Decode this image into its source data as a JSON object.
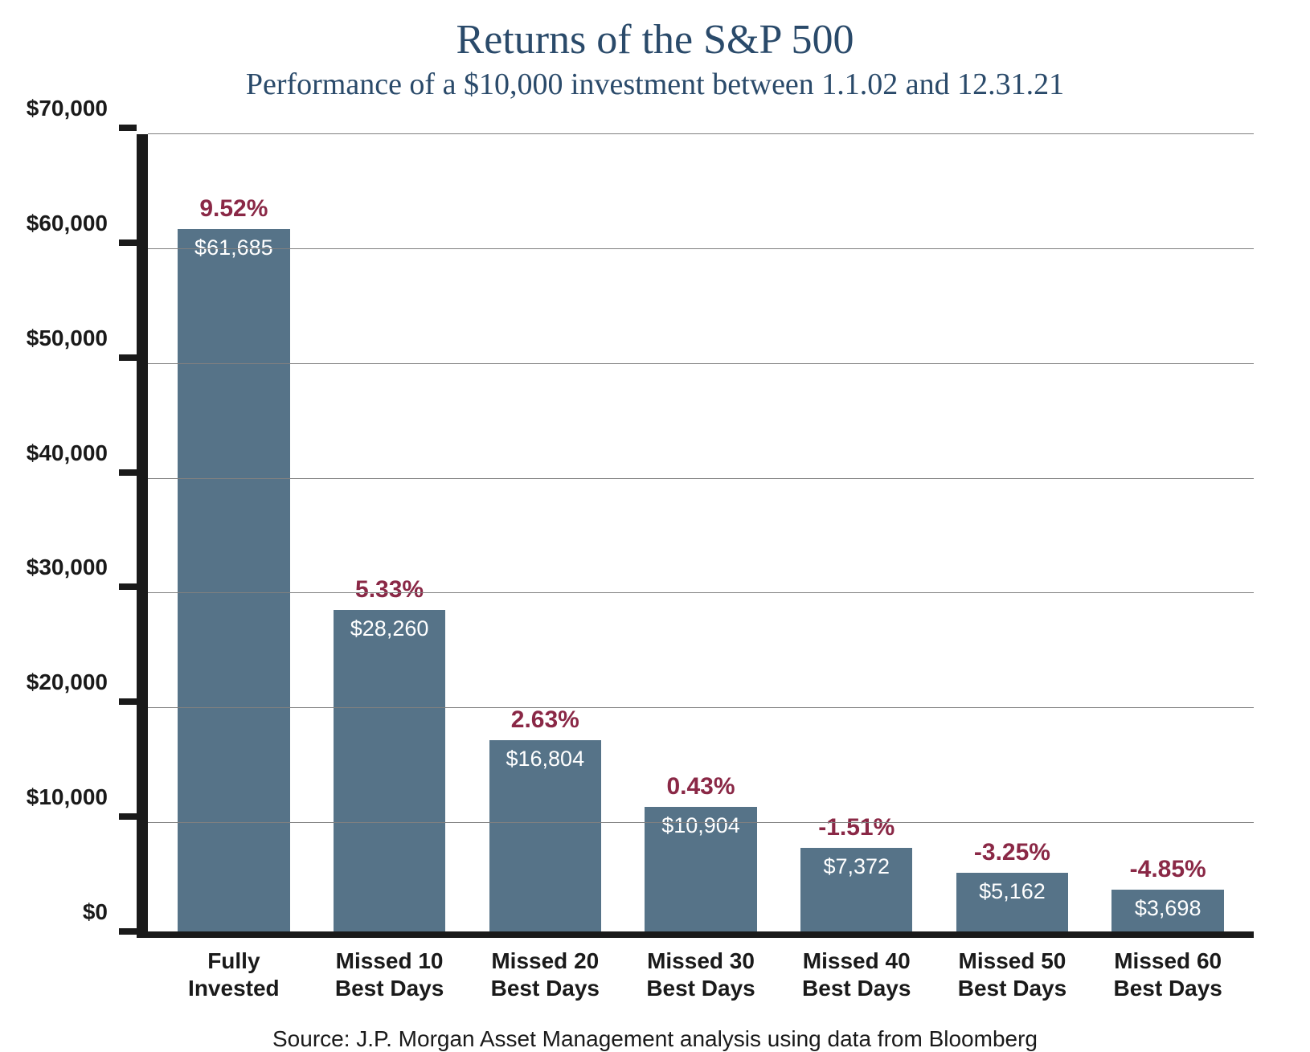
{
  "chart": {
    "type": "bar",
    "title": "Returns of the S&P 500",
    "title_fontsize": 52,
    "title_color": "#2a4a6a",
    "subtitle": "Performance of a $10,000 investment between 1.1.02 and 12.31.21",
    "subtitle_fontsize": 38,
    "subtitle_color": "#2a4a6a",
    "background_color": "#ffffff",
    "bar_color": "#567388",
    "grid_color": "#808080",
    "axis_color": "#1a1a1a",
    "pct_label_color": "#8a2846",
    "value_label_color_inside": "#ffffff",
    "ylim": [
      0,
      70000
    ],
    "ytick_step": 10000,
    "yticks": [
      {
        "value": 0,
        "label": "$0"
      },
      {
        "value": 10000,
        "label": "$10,000"
      },
      {
        "value": 20000,
        "label": "$20,000"
      },
      {
        "value": 30000,
        "label": "$30,000"
      },
      {
        "value": 40000,
        "label": "$40,000"
      },
      {
        "value": 50000,
        "label": "$50,000"
      },
      {
        "value": 60000,
        "label": "$60,000"
      },
      {
        "value": 70000,
        "label": "$70,000"
      }
    ],
    "bar_width_pct": 72,
    "tick_label_fontsize": 28,
    "x_label_fontsize": 28,
    "pct_label_fontsize": 30,
    "value_label_fontsize": 27,
    "source": "Source: J.P. Morgan Asset Management analysis using data from Bloomberg",
    "source_fontsize": 28,
    "categories": [
      {
        "label_line1": "Fully",
        "label_line2": "Invested",
        "value": 61685,
        "value_label": "$61,685",
        "pct": "9.52%"
      },
      {
        "label_line1": "Missed 10",
        "label_line2": "Best Days",
        "value": 28260,
        "value_label": "$28,260",
        "pct": "5.33%"
      },
      {
        "label_line1": "Missed 20",
        "label_line2": "Best Days",
        "value": 16804,
        "value_label": "$16,804",
        "pct": "2.63%"
      },
      {
        "label_line1": "Missed 30",
        "label_line2": "Best Days",
        "value": 10904,
        "value_label": "$10,904",
        "pct": "0.43%"
      },
      {
        "label_line1": "Missed 40",
        "label_line2": "Best Days",
        "value": 7372,
        "value_label": "$7,372",
        "pct": "-1.51%"
      },
      {
        "label_line1": "Missed 50",
        "label_line2": "Best Days",
        "value": 5162,
        "value_label": "$5,162",
        "pct": "-3.25%"
      },
      {
        "label_line1": "Missed 60",
        "label_line2": "Best Days",
        "value": 3698,
        "value_label": "$3,698",
        "pct": "-4.85%"
      }
    ]
  }
}
